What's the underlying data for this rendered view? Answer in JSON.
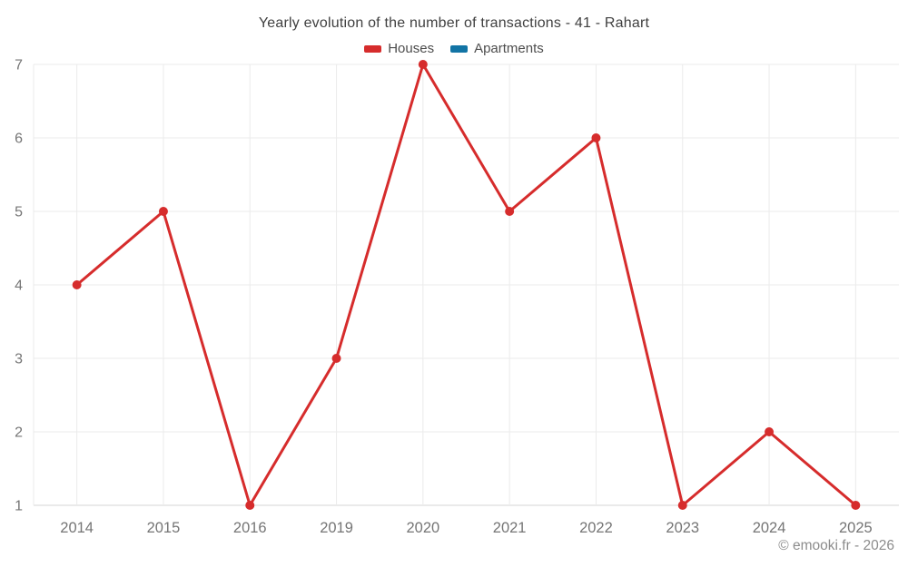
{
  "page": {
    "title": "Yearly evolution of the number of transactions - 41 - Rahart",
    "attribution": "© emooki.fr - 2026"
  },
  "chart_data": {
    "type": "line",
    "title": "Yearly evolution of the number of transactions - 41 - Rahart",
    "categories": [
      "2014",
      "2015",
      "2016",
      "2019",
      "2020",
      "2021",
      "2022",
      "2023",
      "2024",
      "2025"
    ],
    "series": [
      {
        "name": "Houses",
        "color": "#d62c2c",
        "values": [
          4,
          5,
          1,
          3,
          7,
          5,
          6,
          1,
          2,
          1
        ]
      },
      {
        "name": "Apartments",
        "color": "#1274a5",
        "values": []
      }
    ],
    "xlabel": "",
    "ylabel": "",
    "ylim": [
      1,
      7
    ],
    "yticks": [
      1,
      2,
      3,
      4,
      5,
      6,
      7
    ],
    "grid": true,
    "legend_position": "top",
    "marker_radius": 5,
    "line_width": 3,
    "colors": {
      "grid": "#ebebeb",
      "axis_line": "#d6d6d6",
      "tick_label": "#757575",
      "title": "#404040",
      "legend_label": "#4d4d4d",
      "attribution": "#8c8c8c"
    }
  }
}
